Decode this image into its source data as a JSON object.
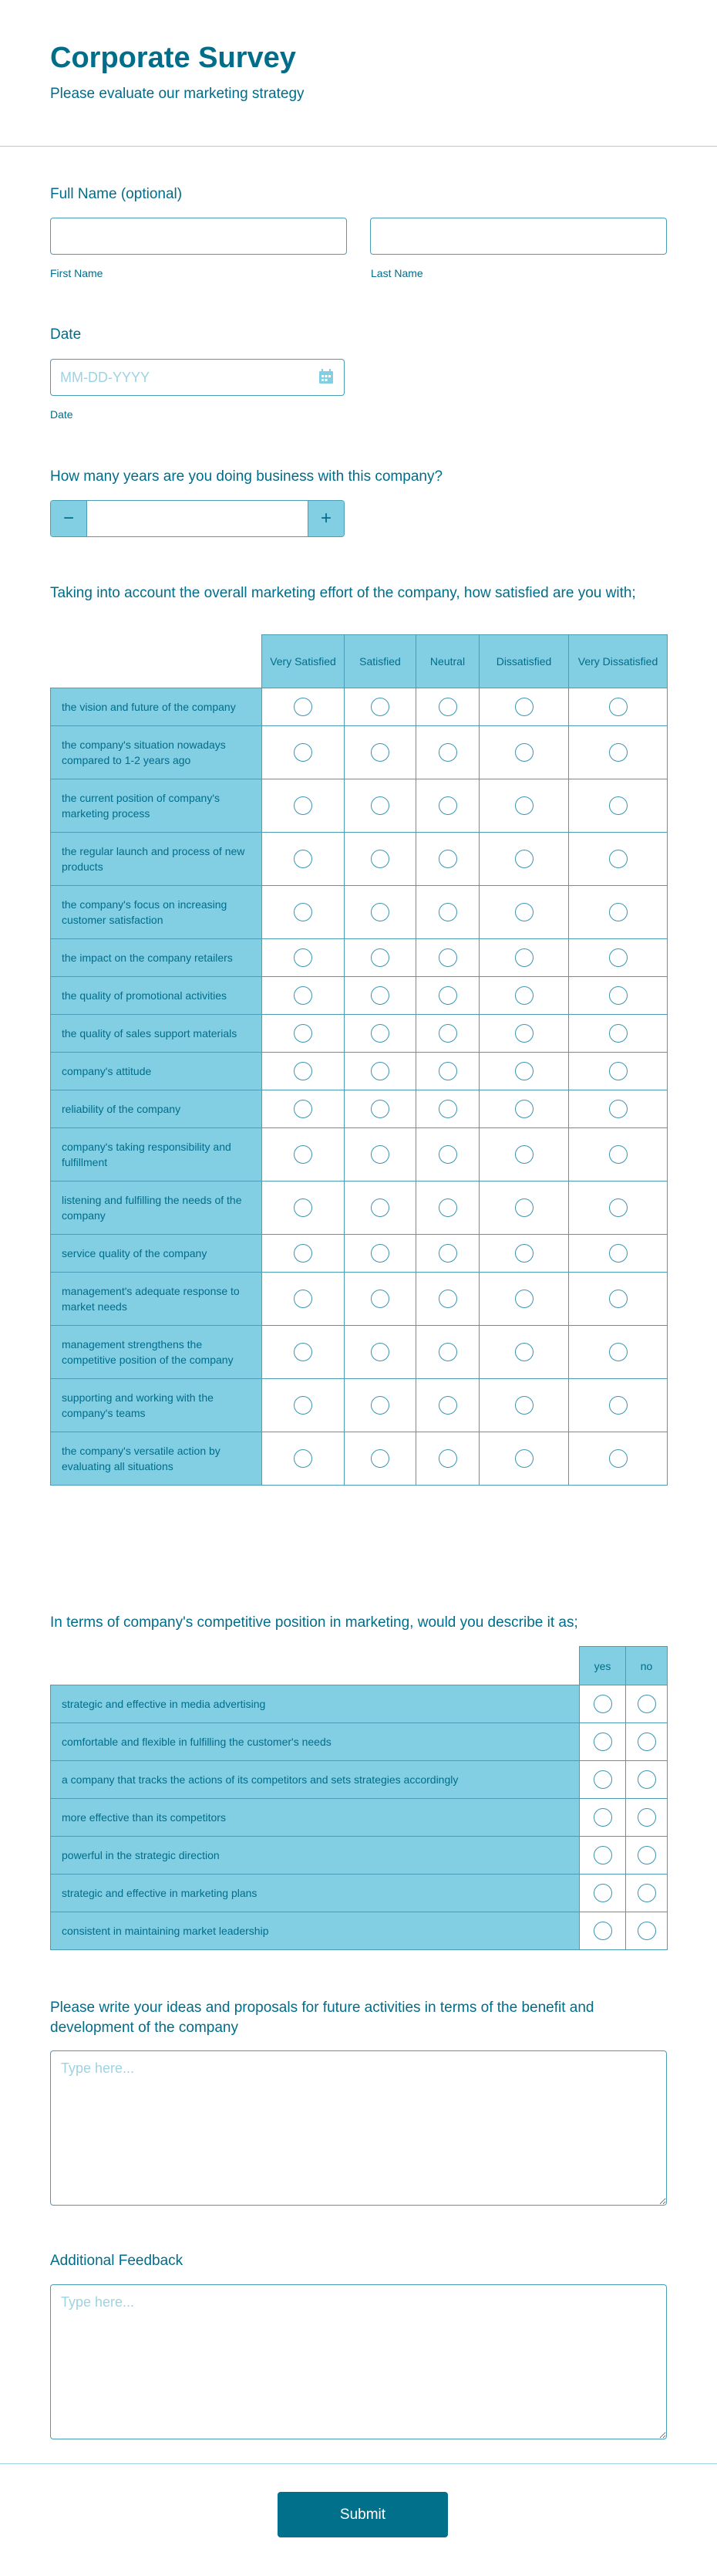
{
  "header": {
    "title": "Corporate Survey",
    "subtitle": "Please evaluate our marketing strategy"
  },
  "full_name": {
    "label": "Full Name (optional)",
    "first_label": "First Name",
    "last_label": "Last Name",
    "first_value": "",
    "last_value": ""
  },
  "date": {
    "label": "Date",
    "placeholder": "MM-DD-YYYY",
    "sublabel": "Date",
    "icon": "calendar-icon"
  },
  "years": {
    "label": "How many years are you doing business with this company?",
    "value": "",
    "minus": "−",
    "plus": "+"
  },
  "satisfaction": {
    "question": "Taking into account the overall marketing effort of the company, how satisfied are you with;",
    "columns": [
      "Very Satisfied",
      "Satisfied",
      "Neutral",
      "Dissatisfied",
      "Very Dissatisfied"
    ],
    "rows": [
      "the vision and future of the company",
      "the company's situation nowadays compared to 1-2 years ago",
      "the current position of company's marketing process",
      "the regular launch and process of new products",
      "the company's focus on increasing customer satisfaction",
      "the impact on the company retailers",
      "the quality of promotional activities",
      "the quality of sales support materials",
      "company's attitude",
      "reliability of the company",
      "company's taking responsibility and fulfillment",
      "listening and fulfilling the needs of the company",
      "service quality of the company",
      "management's adequate response to market needs",
      "management strengthens the competitive position of the company",
      "supporting and working with the company's teams",
      "the company's versatile action by evaluating all situations"
    ]
  },
  "competitive": {
    "question": "In terms of company's competitive position in marketing, would you describe it as;",
    "columns": [
      "yes",
      "no"
    ],
    "rows": [
      "strategic and effective in media advertising",
      "comfortable and flexible in fulfilling the customer's needs",
      "a company that tracks the actions of its competitors and sets strategies accordingly",
      "more effective than its competitors",
      "powerful in the strategic direction",
      "strategic and effective in marketing plans",
      "consistent in maintaining market leadership"
    ]
  },
  "ideas": {
    "label": "Please write your ideas and proposals for future activities in terms of the benefit and development of the company",
    "placeholder": "Type here..."
  },
  "feedback": {
    "label": "Additional Feedback",
    "placeholder": "Type here..."
  },
  "submit_label": "Submit",
  "colors": {
    "primary": "#006d8a",
    "accent": "#82cfe4",
    "button": "#00708b",
    "border": "#4a9db5"
  }
}
